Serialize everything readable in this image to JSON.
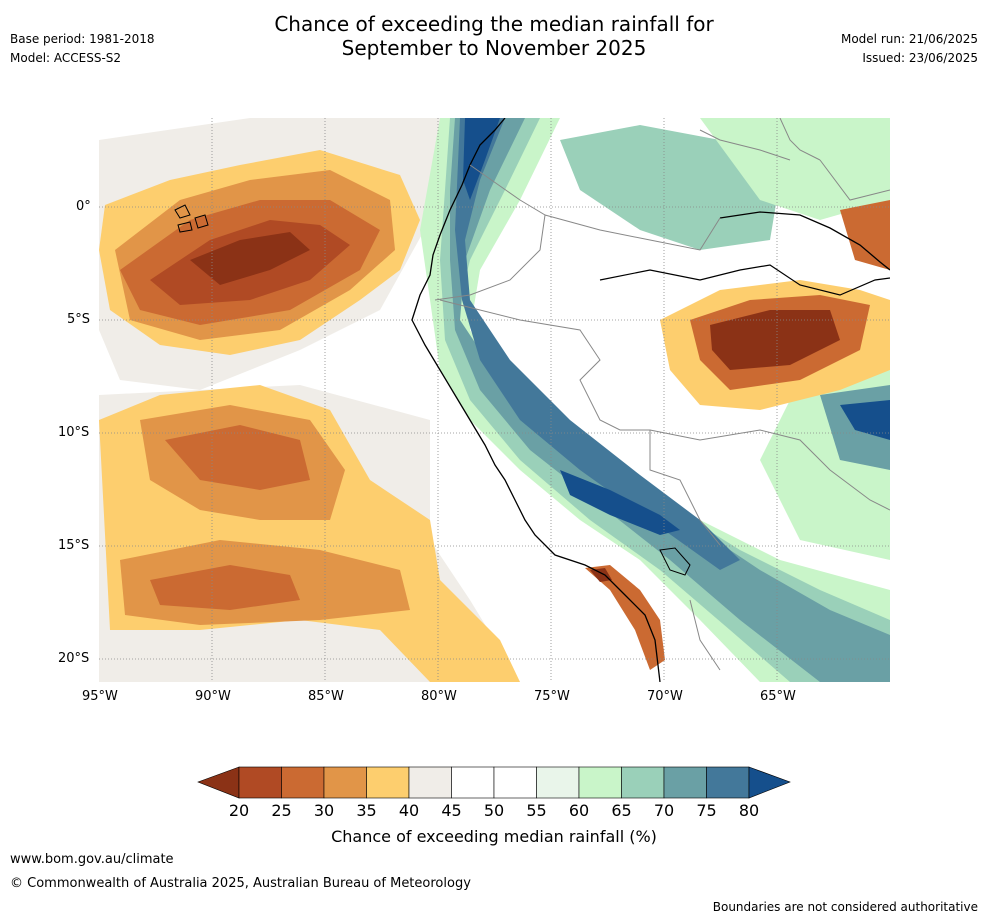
{
  "header": {
    "title_line1": "Chance of exceeding the median rainfall for",
    "title_line2": "September to November 2025",
    "base_period": "Base period: 1981-2018",
    "model": "Model: ACCESS-S2",
    "model_run": "Model run: 21/06/2025",
    "issued": "Issued: 23/06/2025"
  },
  "map": {
    "lat_labels": [
      "0°",
      "5°S",
      "10°S",
      "15°S",
      "20°S"
    ],
    "lon_labels": [
      "95°W",
      "90°W",
      "85°W",
      "80°W",
      "75°W",
      "70°W",
      "65°W"
    ],
    "palette": [
      "#8B3216",
      "#B04A24",
      "#CB6A32",
      "#E19548",
      "#FDCE6E",
      "#F0EDE8",
      "#FFFFFF",
      "#FFFFFF",
      "#E9F5EA",
      "#C9F5C9",
      "#9AD0B9",
      "#6AA0A5",
      "#43789A",
      "#154F8C"
    ],
    "land_outline_color": "#000000",
    "border_color": "#888888"
  },
  "colorbar": {
    "ticks": [
      "20",
      "25",
      "30",
      "35",
      "40",
      "45",
      "50",
      "55",
      "60",
      "65",
      "70",
      "75",
      "80"
    ],
    "label": "Chance of exceeding median rainfall (%)"
  },
  "footer": {
    "url": "www.bom.gov.au/climate",
    "copyright": "© Commonwealth of Australia 2025, Australian Bureau of Meteorology",
    "disclaimer": "Boundaries are not considered authoritative"
  }
}
